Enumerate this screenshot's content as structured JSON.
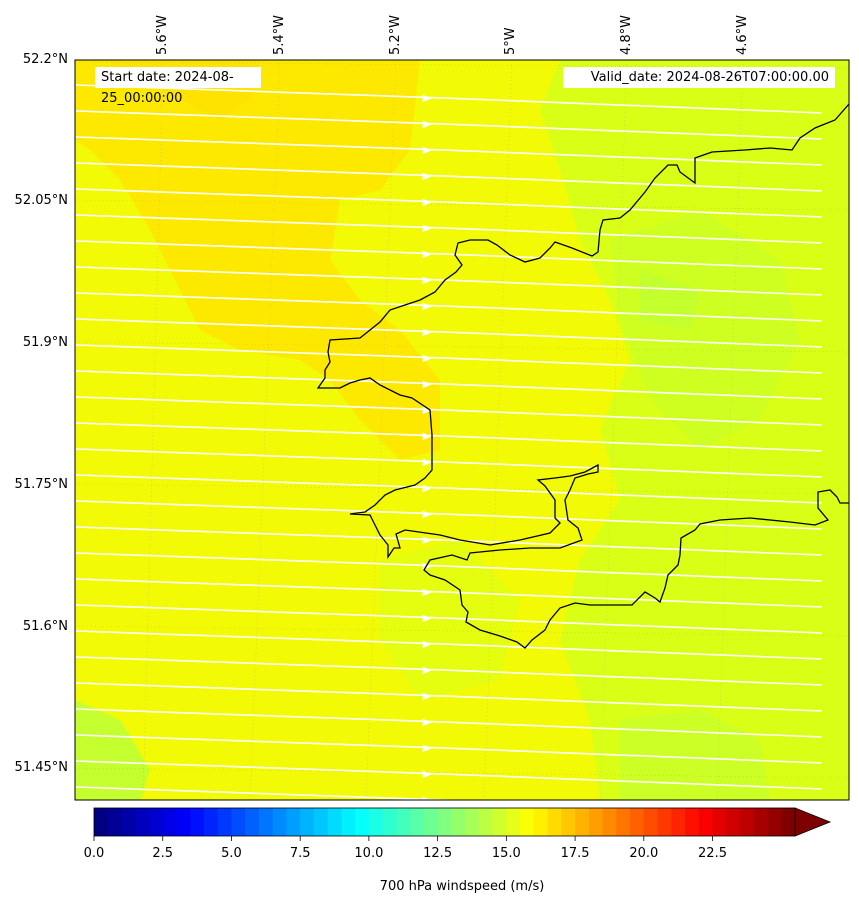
{
  "map": {
    "start_date": "Start date: 2024-08-25_00:00:00",
    "valid_date": "Valid_date: 2024-08-26T07:00:00.00",
    "lat_labels": [
      "52.2°N",
      "52.05°N",
      "51.9°N",
      "51.75°N",
      "51.6°N",
      "51.45°N"
    ],
    "lon_labels": [
      "5.6°W",
      "5.4°W",
      "5.2°W",
      "5°W",
      "4.8°W",
      "4.6°W"
    ],
    "streamline_color": "#ffffff",
    "coastline_color": "#000000",
    "field_colors": {
      "dominant": "#f2fa06",
      "strong": "#ffe500",
      "weaker": "#d6ff1a",
      "weakest": "#b8ff3a"
    }
  },
  "colorbar": {
    "label": "700 hPa windspeed (m/s)",
    "ticks": [
      "0.0",
      "2.5",
      "5.0",
      "7.5",
      "10.0",
      "12.5",
      "15.0",
      "17.5",
      "20.0",
      "22.5"
    ],
    "range": [
      0,
      25.5
    ],
    "extend": "max"
  }
}
